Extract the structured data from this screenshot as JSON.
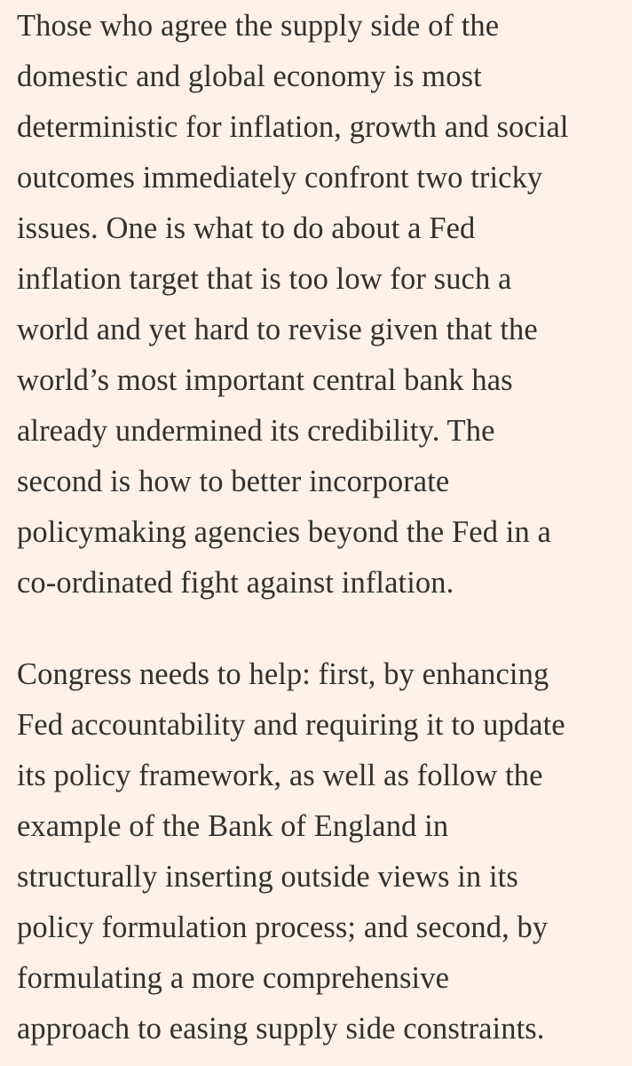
{
  "article": {
    "paragraphs": [
      {
        "lines": [
          "Those who agree the supply side of the",
          "domestic and global economy is most",
          "deterministic for inflation, growth and social",
          "outcomes immediately confront two tricky",
          "issues. One is what to do about a Fed",
          "inflation target that is too low for such a",
          "world and yet hard to revise given that the",
          "world’s most important central bank has",
          "already undermined its credibility. The",
          "second is how to better incorporate",
          "policymaking agencies beyond the Fed in a",
          "co-ordinated fight against inflation."
        ]
      },
      {
        "lines": [
          "Congress needs to help: first, by enhancing",
          "Fed accountability and requiring it to update",
          "its policy framework, as well as follow the",
          "example of the Bank of England in",
          "structurally inserting outside views in its",
          "policy formulation process; and second, by",
          "formulating a more comprehensive",
          "approach to easing supply side constraints."
        ]
      }
    ]
  }
}
